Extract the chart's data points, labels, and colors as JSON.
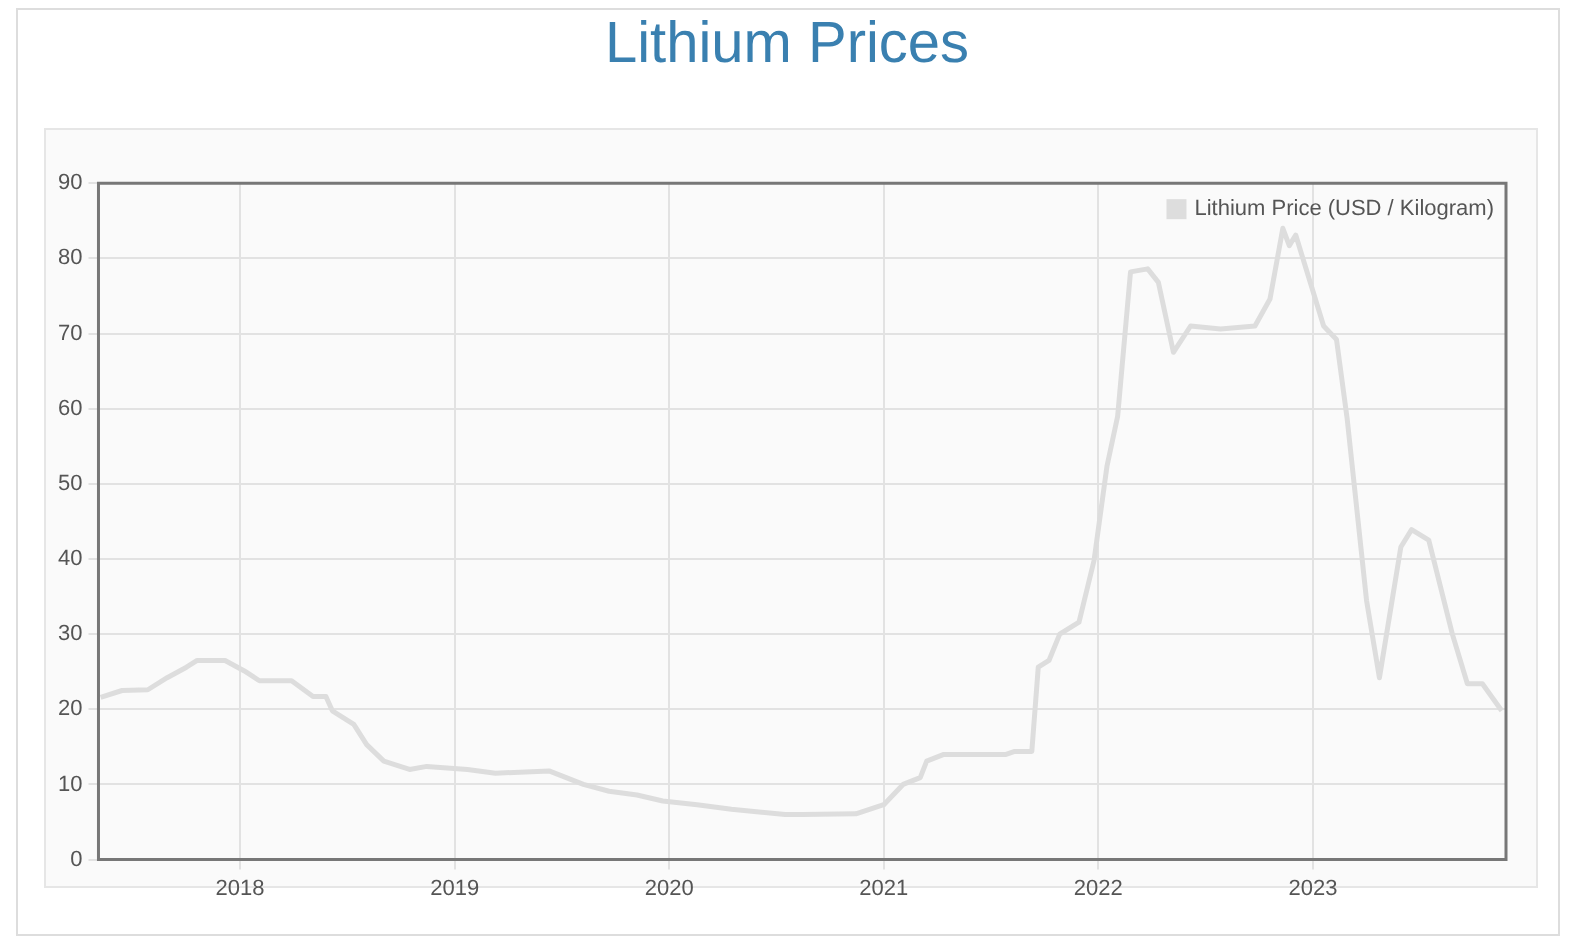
{
  "chart_data": {
    "type": "line",
    "title": "Lithium Prices",
    "x": [
      2017.35,
      2017.45,
      2017.57,
      2017.66,
      2017.75,
      2017.8,
      2017.93,
      2018.02,
      2018.09,
      2018.24,
      2018.34,
      2018.4,
      2018.43,
      2018.53,
      2018.59,
      2018.67,
      2018.79,
      2018.87,
      2019.06,
      2019.19,
      2019.44,
      2019.6,
      2019.72,
      2019.85,
      2019.97,
      2020.13,
      2020.29,
      2020.54,
      2020.62,
      2020.87,
      2021.0,
      2021.09,
      2021.17,
      2021.2,
      2021.28,
      2021.57,
      2021.61,
      2021.69,
      2021.72,
      2021.77,
      2021.82,
      2021.91,
      2021.98,
      2022.04,
      2022.09,
      2022.15,
      2022.23,
      2022.28,
      2022.35,
      2022.43,
      2022.57,
      2022.73,
      2022.8,
      2022.86,
      2022.89,
      2022.92,
      2023.05,
      2023.11,
      2023.16,
      2023.25,
      2023.31,
      2023.41,
      2023.46,
      2023.54,
      2023.65,
      2023.72,
      2023.79,
      2023.88
    ],
    "series": [
      {
        "name": "Lithium Price (USD / Kilogram)",
        "color": "#dddddd",
        "values": [
          21.6,
          22.5,
          22.6,
          24.2,
          25.6,
          26.5,
          26.5,
          25.1,
          23.8,
          23.8,
          21.7,
          21.7,
          19.8,
          18.0,
          15.3,
          13.1,
          12.0,
          12.4,
          12.0,
          11.5,
          11.8,
          10.0,
          9.1,
          8.6,
          7.8,
          7.3,
          6.7,
          6.0,
          6.0,
          6.1,
          7.3,
          10.0,
          10.9,
          13.1,
          14.0,
          14.0,
          14.4,
          14.4,
          25.6,
          26.5,
          30.0,
          31.6,
          39.8,
          52.3,
          59.0,
          78.2,
          78.6,
          76.8,
          67.5,
          71.0,
          70.6,
          71.0,
          74.6,
          84.0,
          81.7,
          83.1,
          71.0,
          69.2,
          58.6,
          34.5,
          24.2,
          41.6,
          43.9,
          42.5,
          30.0,
          23.4,
          23.4,
          19.8
        ]
      }
    ],
    "xlim": [
      2017.34,
      2023.9
    ],
    "xticks": [
      2018,
      2019,
      2020,
      2021,
      2022,
      2023
    ],
    "ylim": [
      0,
      90
    ],
    "yticks": [
      0,
      10,
      20,
      30,
      40,
      50,
      60,
      70,
      80,
      90
    ],
    "grid": true,
    "legend": "top right",
    "marker": "none",
    "line_style": "solid"
  }
}
